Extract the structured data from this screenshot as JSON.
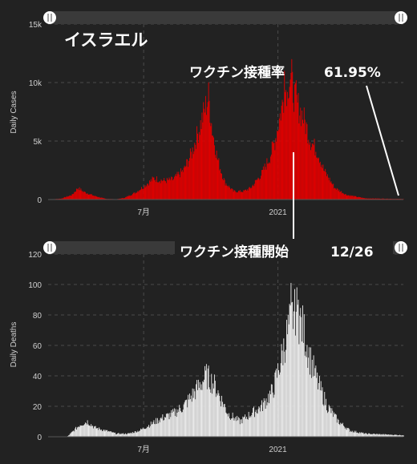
{
  "country_title": "イスラエル",
  "vaccination_rate_label": "ワクチン接種率",
  "vaccination_rate_value": "61.95%",
  "vaccination_start_label": "ワクチン接種開始",
  "vaccination_start_date": "12/26",
  "colors": {
    "cases": "#e20000",
    "deaths": "#ececec",
    "background": "#222222",
    "slider_bar": "#3a3a3a"
  },
  "chart_data": [
    {
      "type": "bar",
      "title": "",
      "xlabel": "",
      "ylabel": "Daily Cases",
      "ylim": [
        0,
        15000
      ],
      "yticks": [
        {
          "v": 0,
          "label": "0"
        },
        {
          "v": 5000,
          "label": "5k"
        },
        {
          "v": 10000,
          "label": "10k"
        },
        {
          "v": 15000,
          "label": "15k"
        }
      ],
      "x_ticks": [
        {
          "label": "7月",
          "date": "2020-07-01"
        },
        {
          "label": "2021",
          "date": "2021-01-01"
        }
      ],
      "x_range": [
        "2020-02-21",
        "2021-06-22"
      ],
      "grid": true,
      "keypoints": [
        [
          "2020-02-21",
          0
        ],
        [
          "2020-03-10",
          80
        ],
        [
          "2020-03-25",
          400
        ],
        [
          "2020-04-02",
          1000
        ],
        [
          "2020-04-10",
          650
        ],
        [
          "2020-04-25",
          300
        ],
        [
          "2020-05-10",
          60
        ],
        [
          "2020-05-25",
          30
        ],
        [
          "2020-06-05",
          150
        ],
        [
          "2020-06-20",
          600
        ],
        [
          "2020-07-05",
          1300
        ],
        [
          "2020-07-15",
          1800
        ],
        [
          "2020-07-30",
          1600
        ],
        [
          "2020-08-10",
          1700
        ],
        [
          "2020-08-25",
          2500
        ],
        [
          "2020-09-05",
          4000
        ],
        [
          "2020-09-15",
          6000
        ],
        [
          "2020-09-22",
          7500
        ],
        [
          "2020-09-28",
          8800
        ],
        [
          "2020-10-03",
          6000
        ],
        [
          "2020-10-10",
          3500
        ],
        [
          "2020-10-20",
          1500
        ],
        [
          "2020-11-01",
          700
        ],
        [
          "2020-11-15",
          700
        ],
        [
          "2020-11-25",
          1000
        ],
        [
          "2020-12-10",
          2200
        ],
        [
          "2020-12-20",
          3500
        ],
        [
          "2020-12-28",
          5000
        ],
        [
          "2021-01-05",
          7500
        ],
        [
          "2021-01-12",
          9500
        ],
        [
          "2021-01-18",
          10500
        ],
        [
          "2021-01-25",
          8500
        ],
        [
          "2021-02-05",
          7000
        ],
        [
          "2021-02-15",
          5000
        ],
        [
          "2021-02-25",
          4000
        ],
        [
          "2021-03-05",
          2500
        ],
        [
          "2021-03-20",
          1000
        ],
        [
          "2021-04-05",
          400
        ],
        [
          "2021-05-01",
          100
        ],
        [
          "2021-06-22",
          50
        ]
      ],
      "spikes": [
        [
          "2021-01-20",
          12000
        ],
        [
          "2021-01-26",
          10200
        ],
        [
          "2021-01-14",
          9200
        ],
        [
          "2021-01-10",
          11000
        ]
      ]
    },
    {
      "type": "bar",
      "title": "",
      "xlabel": "",
      "ylabel": "Daily Deaths",
      "ylim": [
        0,
        120
      ],
      "yticks": [
        {
          "v": 0,
          "label": "0"
        },
        {
          "v": 20,
          "label": "20"
        },
        {
          "v": 40,
          "label": "40"
        },
        {
          "v": 60,
          "label": "60"
        },
        {
          "v": 80,
          "label": "80"
        },
        {
          "v": 100,
          "label": "100"
        },
        {
          "v": 120,
          "label": "120"
        }
      ],
      "x_ticks": [
        {
          "label": "7月",
          "date": "2020-07-01"
        },
        {
          "label": "2021",
          "date": "2021-01-01"
        }
      ],
      "x_range": [
        "2020-02-21",
        "2021-06-22"
      ],
      "grid": true,
      "keypoints": [
        [
          "2020-02-21",
          0
        ],
        [
          "2020-03-18",
          0
        ],
        [
          "2020-03-25",
          3
        ],
        [
          "2020-04-05",
          8
        ],
        [
          "2020-04-15",
          10
        ],
        [
          "2020-04-25",
          6
        ],
        [
          "2020-05-10",
          4
        ],
        [
          "2020-05-25",
          2
        ],
        [
          "2020-06-10",
          2
        ],
        [
          "2020-06-25",
          4
        ],
        [
          "2020-07-10",
          8
        ],
        [
          "2020-07-25",
          12
        ],
        [
          "2020-08-10",
          15
        ],
        [
          "2020-08-25",
          20
        ],
        [
          "2020-09-10",
          30
        ],
        [
          "2020-09-25",
          40
        ],
        [
          "2020-10-05",
          35
        ],
        [
          "2020-10-15",
          25
        ],
        [
          "2020-10-25",
          15
        ],
        [
          "2020-11-10",
          10
        ],
        [
          "2020-11-25",
          15
        ],
        [
          "2020-12-10",
          20
        ],
        [
          "2020-12-25",
          30
        ],
        [
          "2021-01-05",
          50
        ],
        [
          "2021-01-15",
          70
        ],
        [
          "2021-01-25",
          85
        ],
        [
          "2021-02-05",
          70
        ],
        [
          "2021-02-15",
          50
        ],
        [
          "2021-02-25",
          35
        ],
        [
          "2021-03-10",
          20
        ],
        [
          "2021-03-25",
          10
        ],
        [
          "2021-04-10",
          4
        ],
        [
          "2021-05-01",
          2
        ],
        [
          "2021-06-22",
          1
        ]
      ],
      "spikes": [
        [
          "2021-01-19",
          101
        ],
        [
          "2021-01-24",
          97
        ],
        [
          "2021-01-29",
          90
        ]
      ]
    }
  ]
}
